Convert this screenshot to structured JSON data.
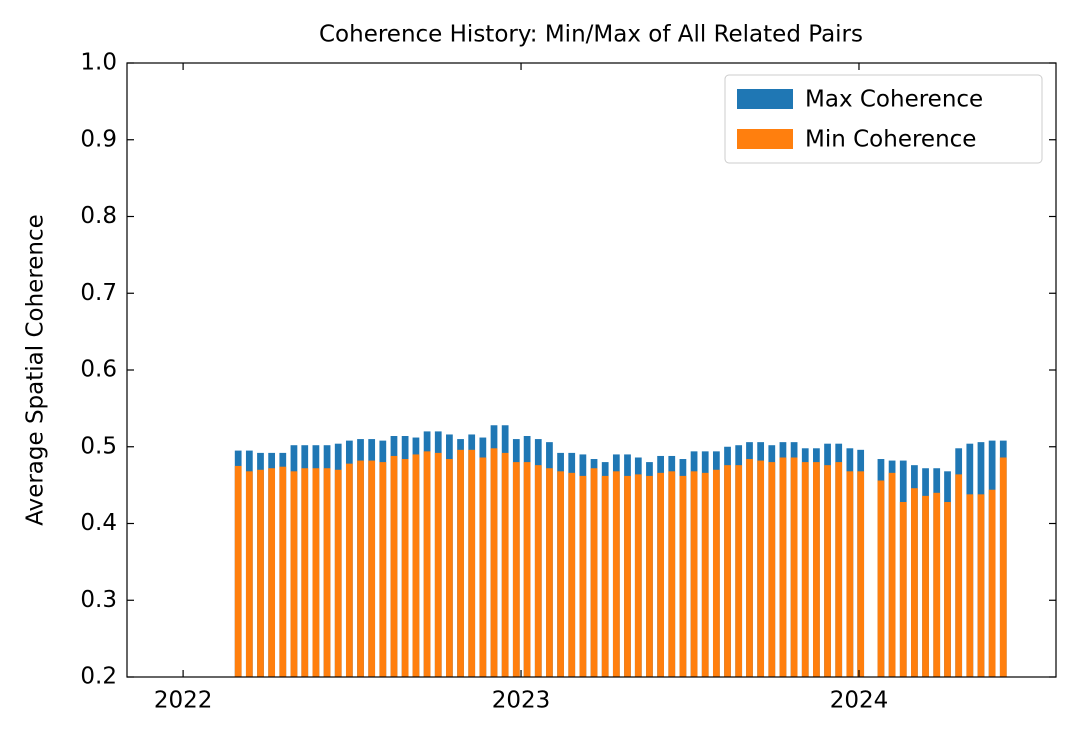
{
  "chart_data": {
    "type": "bar",
    "title": "Coherence History: Min/Max of All Related Pairs",
    "ylabel": "Average Spatial Coherence",
    "x": [
      2022.163,
      2022.196,
      2022.229,
      2022.262,
      2022.295,
      2022.328,
      2022.36,
      2022.393,
      2022.426,
      2022.459,
      2022.492,
      2022.525,
      2022.558,
      2022.591,
      2022.624,
      2022.657,
      2022.689,
      2022.722,
      2022.755,
      2022.788,
      2022.821,
      2022.854,
      2022.887,
      2022.92,
      2022.953,
      2022.986,
      2023.018,
      2023.051,
      2023.084,
      2023.117,
      2023.15,
      2023.183,
      2023.216,
      2023.249,
      2023.282,
      2023.315,
      2023.347,
      2023.38,
      2023.413,
      2023.446,
      2023.479,
      2023.512,
      2023.545,
      2023.578,
      2023.611,
      2023.644,
      2023.676,
      2023.709,
      2023.742,
      2023.775,
      2023.808,
      2023.841,
      2023.874,
      2023.907,
      2023.94,
      2023.973,
      2024.005,
      2024.065,
      2024.098,
      2024.131,
      2024.164,
      2024.197,
      2024.23,
      2024.262,
      2024.295,
      2024.328,
      2024.361,
      2024.394,
      2024.427
    ],
    "series": [
      {
        "name": "Max Coherence",
        "color": "#1f77b4",
        "values": [
          0.495,
          0.495,
          0.492,
          0.492,
          0.492,
          0.502,
          0.502,
          0.502,
          0.502,
          0.504,
          0.508,
          0.51,
          0.51,
          0.508,
          0.514,
          0.514,
          0.512,
          0.52,
          0.52,
          0.516,
          0.51,
          0.516,
          0.512,
          0.528,
          0.528,
          0.51,
          0.514,
          0.51,
          0.506,
          0.492,
          0.492,
          0.49,
          0.484,
          0.48,
          0.49,
          0.49,
          0.486,
          0.48,
          0.488,
          0.488,
          0.484,
          0.494,
          0.494,
          0.494,
          0.5,
          0.502,
          0.506,
          0.506,
          0.502,
          0.506,
          0.506,
          0.498,
          0.498,
          0.504,
          0.504,
          0.498,
          0.496,
          0.484,
          0.482,
          0.482,
          0.476,
          0.472,
          0.472,
          0.468,
          0.498,
          0.504,
          0.506,
          0.508,
          0.508
        ]
      },
      {
        "name": "Min Coherence",
        "color": "#ff7f0e",
        "values": [
          0.475,
          0.468,
          0.47,
          0.472,
          0.474,
          0.468,
          0.472,
          0.472,
          0.472,
          0.47,
          0.478,
          0.482,
          0.482,
          0.48,
          0.488,
          0.484,
          0.49,
          0.494,
          0.492,
          0.484,
          0.496,
          0.496,
          0.486,
          0.498,
          0.492,
          0.48,
          0.48,
          0.476,
          0.472,
          0.468,
          0.466,
          0.462,
          0.472,
          0.462,
          0.468,
          0.462,
          0.464,
          0.462,
          0.466,
          0.468,
          0.462,
          0.468,
          0.466,
          0.47,
          0.476,
          0.476,
          0.484,
          0.482,
          0.48,
          0.486,
          0.486,
          0.48,
          0.48,
          0.476,
          0.48,
          0.468,
          0.468,
          0.456,
          0.466,
          0.428,
          0.446,
          0.436,
          0.44,
          0.428,
          0.464,
          0.438,
          0.438,
          0.444,
          0.486
        ]
      }
    ],
    "bar_width": 0.02,
    "xlim": [
      2021.834,
      2024.583
    ],
    "xticks": [
      2022,
      2023,
      2024
    ],
    "ylim": [
      0.2,
      1
    ],
    "yticks": [
      0.2,
      0.3,
      0.4,
      0.5,
      0.6,
      0.7,
      0.8,
      0.9,
      {
        "value": 1,
        "label": "1.0"
      }
    ],
    "legend": "upper right",
    "grid": false
  }
}
